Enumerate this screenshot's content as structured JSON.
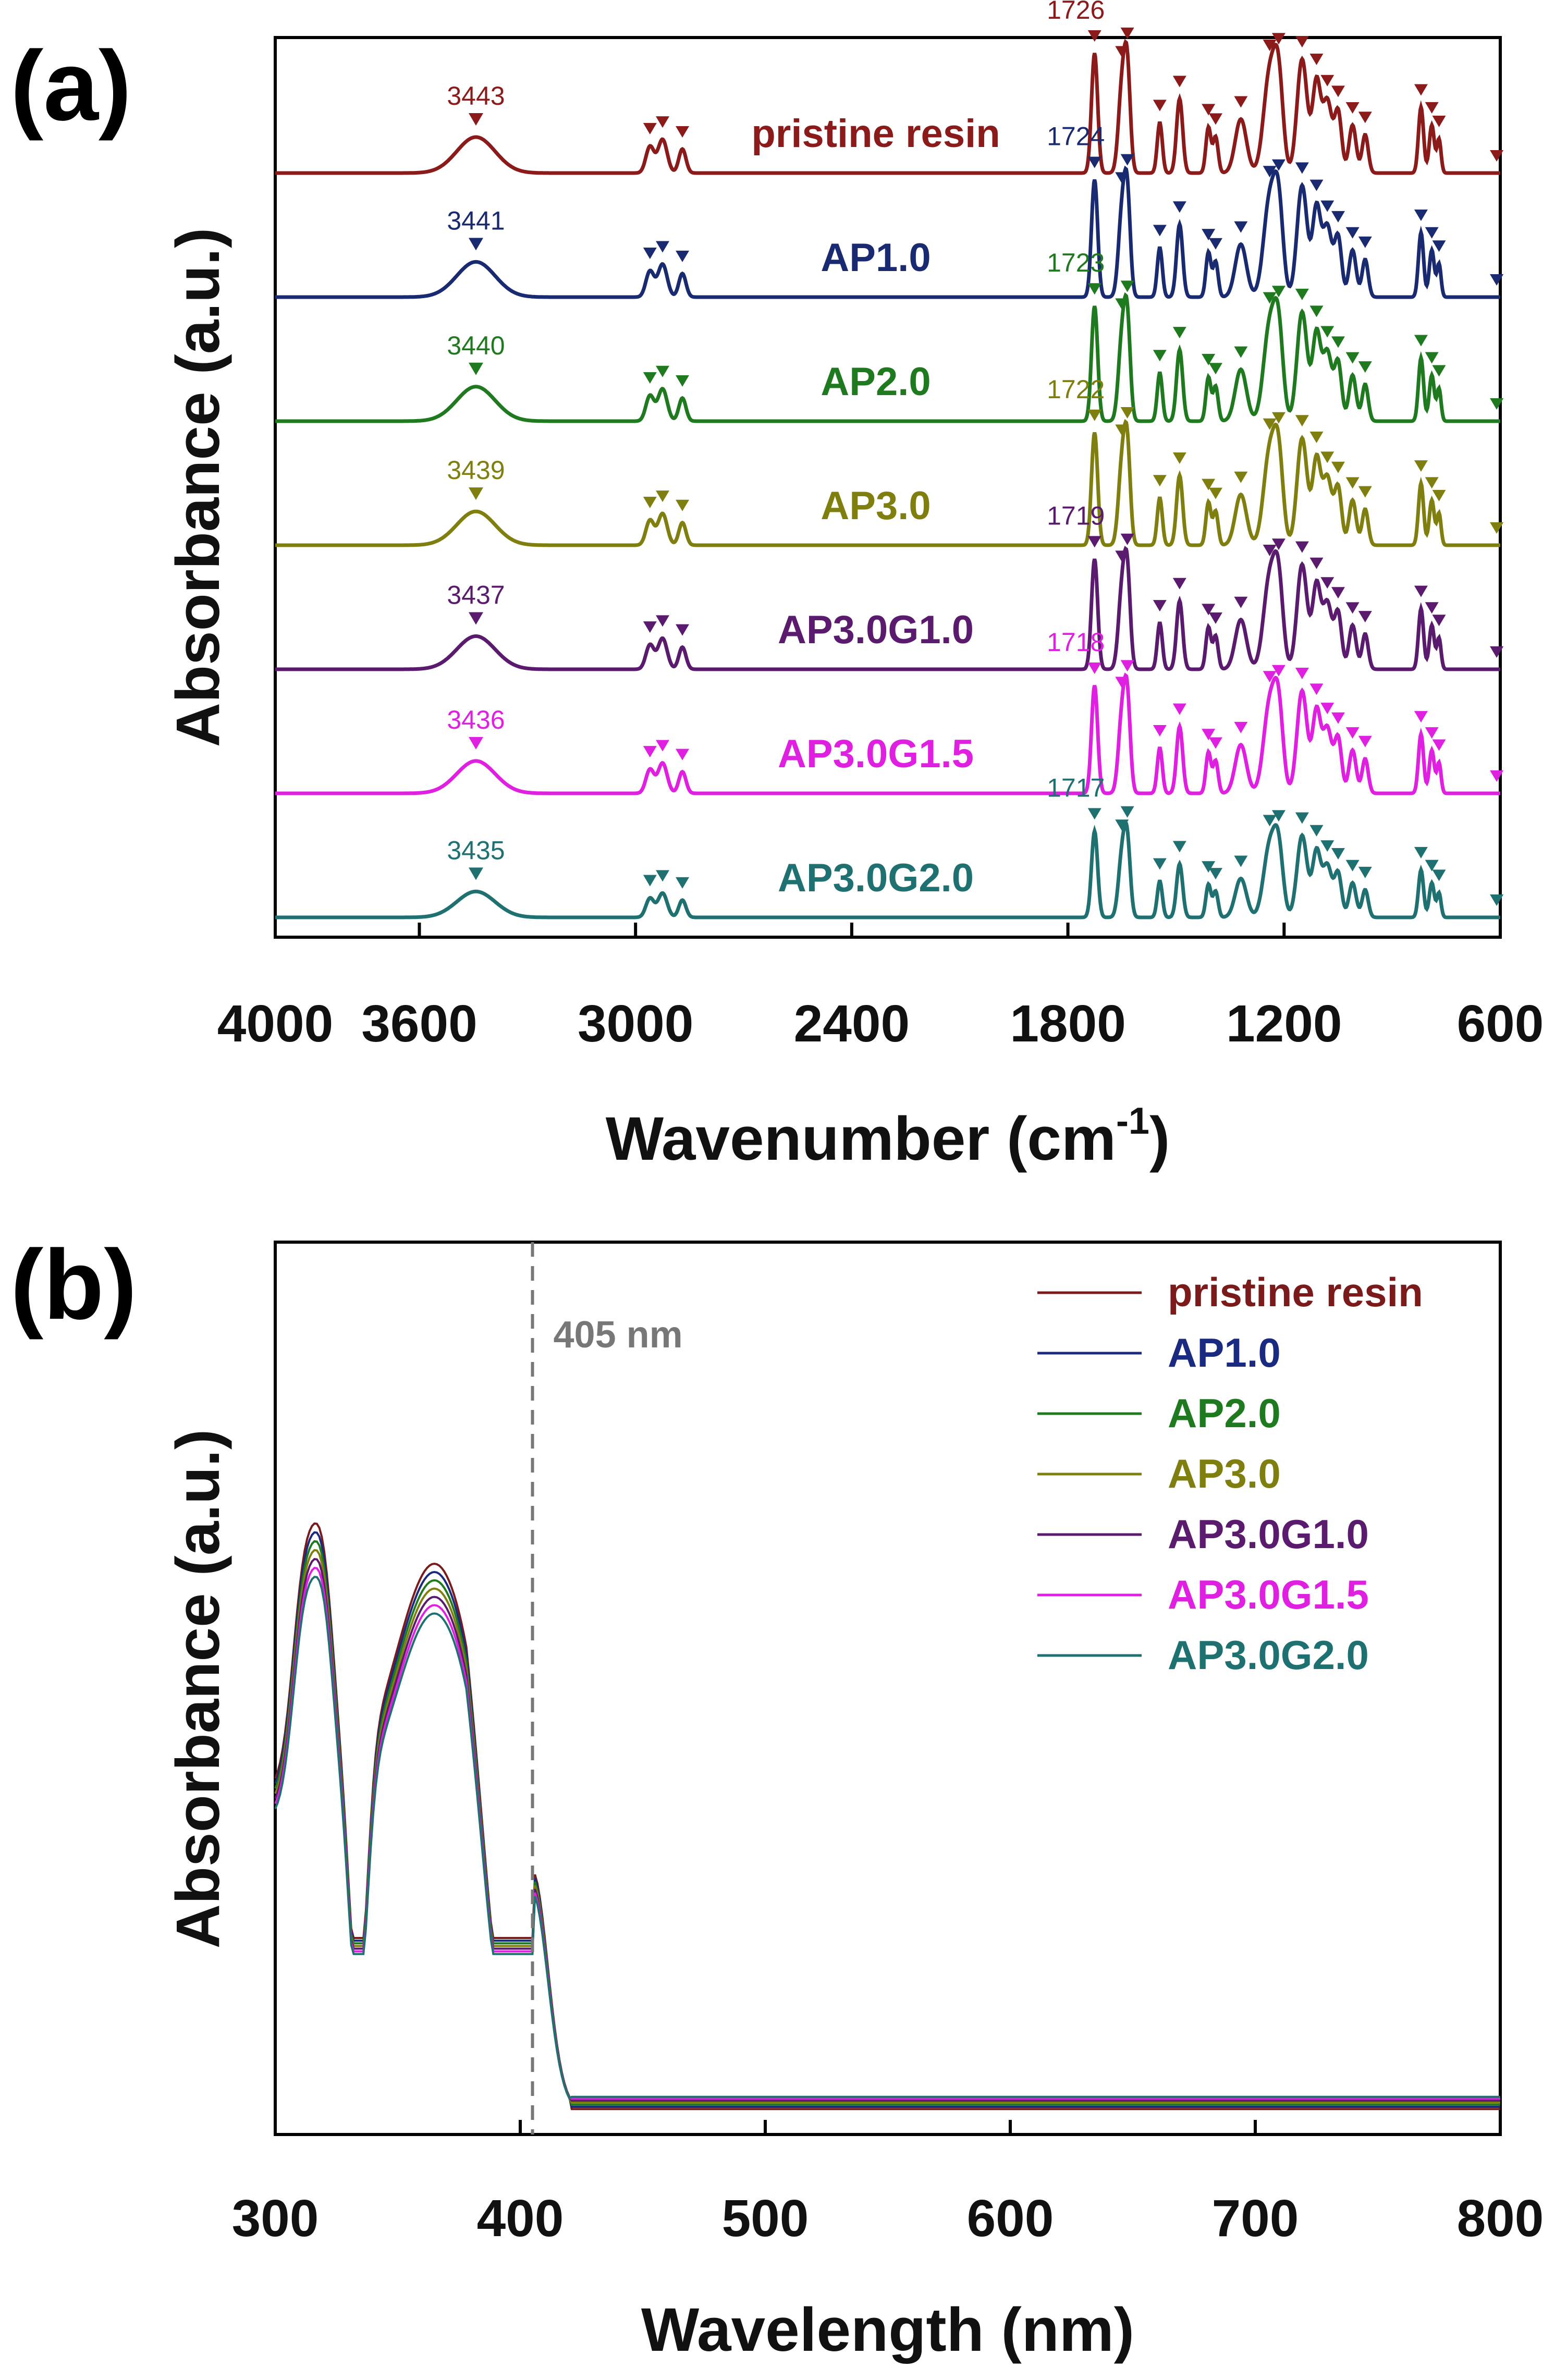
{
  "figure": {
    "panel_a_label": "(a)",
    "panel_b_label": "(b)"
  },
  "chart_data": [
    {
      "id": "a",
      "type": "line",
      "title": "",
      "xlabel": "Wavenumber (cm",
      "xlabel_superscript": "-1",
      "xlabel_suffix": ")",
      "ylabel": "Absorbance (a.u.)",
      "xlim": [
        4000,
        600
      ],
      "x_reversed": true,
      "xticks": [
        "4000",
        "3600",
        "3000",
        "2400",
        "1800",
        "1200",
        "600"
      ],
      "xtick_values": [
        4000,
        3600,
        3000,
        2400,
        1800,
        1200,
        600
      ],
      "y_ticks_shown": false,
      "series": [
        {
          "name": "pristine resin",
          "color": "#8b1a1a",
          "oh_peak": "3443",
          "co_peak": "1726",
          "offset": 6,
          "scale": 1.0
        },
        {
          "name": "AP1.0",
          "color": "#1a2a70",
          "oh_peak": "3441",
          "co_peak": "1724",
          "offset": 5,
          "scale": 0.98
        },
        {
          "name": "AP2.0",
          "color": "#1f7a1f",
          "oh_peak": "3440",
          "co_peak": "1723",
          "offset": 4,
          "scale": 0.96
        },
        {
          "name": "AP3.0",
          "color": "#7f7f10",
          "oh_peak": "3439",
          "co_peak": "1722",
          "offset": 3,
          "scale": 0.94
        },
        {
          "name": "AP3.0G1.0",
          "color": "#5a1a6e",
          "oh_peak": "3437",
          "co_peak": "1719",
          "offset": 2,
          "scale": 0.92
        },
        {
          "name": "AP3.0G1.5",
          "color": "#e020e0",
          "oh_peak": "3436",
          "co_peak": "1718",
          "offset": 1,
          "scale": 0.9
        },
        {
          "name": "AP3.0G2.0",
          "color": "#1f7070",
          "oh_peak": "3435",
          "co_peak": "1717",
          "offset": 0,
          "scale": 0.72
        }
      ],
      "marker_positions_cm1": [
        2960,
        2925,
        2870,
        1726,
        1650,
        1635,
        1545,
        1490,
        1410,
        1390,
        1320,
        1240,
        1215,
        1150,
        1110,
        1080,
        1050,
        1010,
        975,
        820,
        790,
        770,
        610
      ]
    },
    {
      "id": "b",
      "type": "line",
      "title": "",
      "xlabel": "Wavelength (nm)",
      "ylabel": "Absorbance (a.u.)",
      "xlim": [
        300,
        800
      ],
      "xticks": [
        "300",
        "400",
        "500",
        "600",
        "700",
        "800"
      ],
      "xtick_values": [
        300,
        400,
        500,
        600,
        700,
        800
      ],
      "y_ticks_shown": false,
      "reference_line": {
        "x": 405,
        "label": "405 nm",
        "style": "dashed"
      },
      "legend_position": "top-right",
      "series": [
        {
          "name": "pristine resin",
          "color": "#7a1a1a",
          "scale": 1.0
        },
        {
          "name": "AP1.0",
          "color": "#1a2a80",
          "scale": 0.985
        },
        {
          "name": "AP2.0",
          "color": "#1f7a1f",
          "scale": 0.97
        },
        {
          "name": "AP3.0",
          "color": "#7f7f10",
          "scale": 0.955
        },
        {
          "name": "AP3.0G1.0",
          "color": "#5a1a6e",
          "scale": 0.94
        },
        {
          "name": "AP3.0G1.5",
          "color": "#e020e0",
          "scale": 0.925
        },
        {
          "name": "AP3.0G2.0",
          "color": "#1f7070",
          "scale": 0.91
        }
      ]
    }
  ]
}
